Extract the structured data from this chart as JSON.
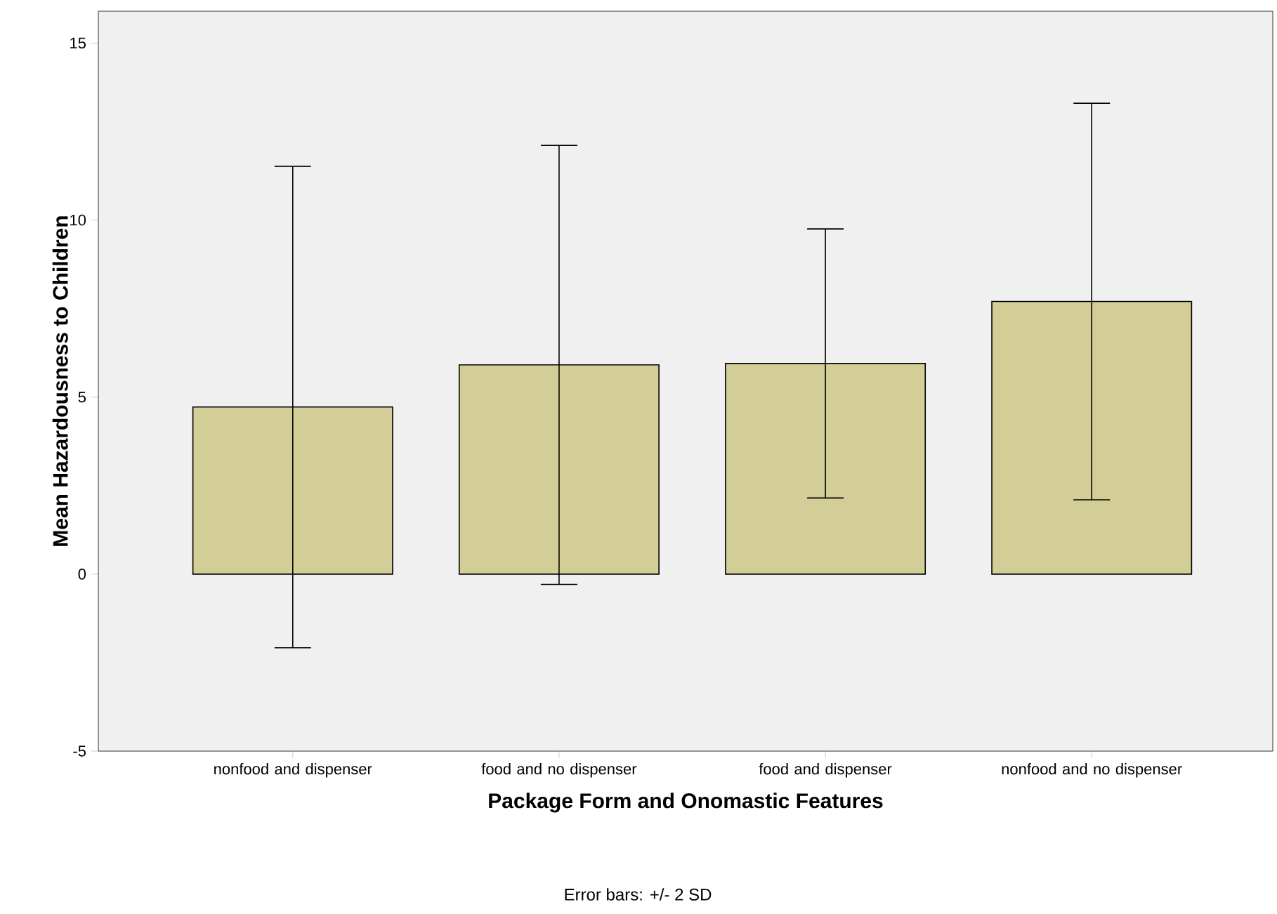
{
  "chart_data": {
    "type": "bar",
    "xlabel": "Package Form and Onomastic Features",
    "ylabel": "Mean Hazardousness to Children",
    "categories": [
      "nonfood and  dispenser",
      "food and no dispenser",
      "food and dispenser",
      "nonfood and  no dispenser"
    ],
    "values": [
      4.72,
      5.91,
      5.95,
      7.7
    ],
    "errors": [
      6.8,
      6.2,
      3.8,
      5.6
    ],
    "color": "#d3ce97",
    "ylim": [
      -5,
      15.9
    ],
    "yticks": [
      -5,
      0,
      5,
      10,
      15
    ],
    "annotations": [
      "Error bars: +/- 2 SD"
    ]
  }
}
